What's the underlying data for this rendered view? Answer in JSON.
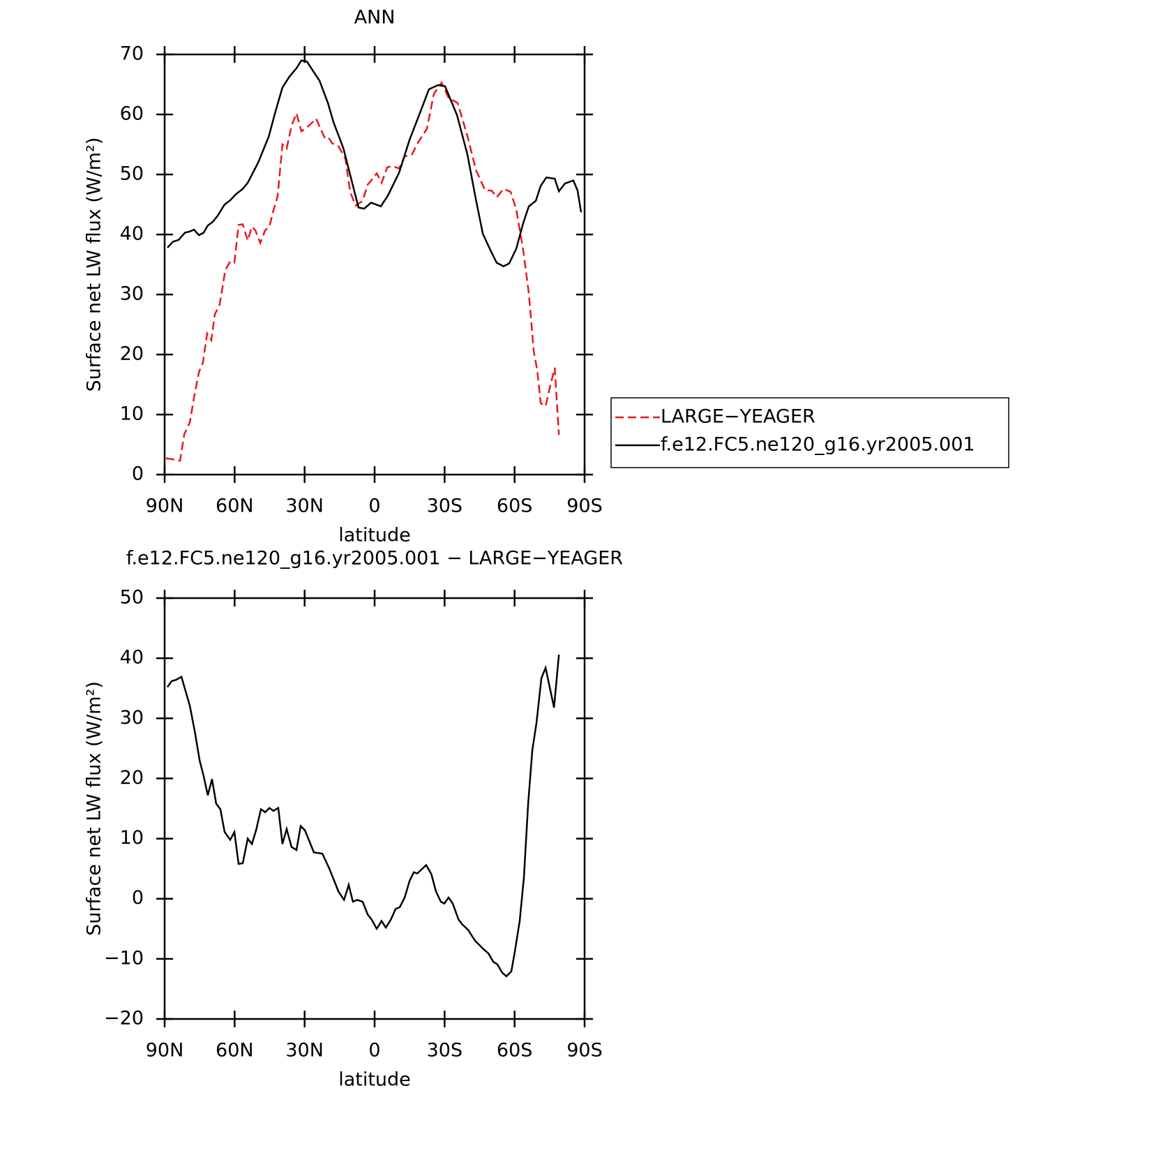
{
  "chart_data": [
    {
      "type": "line",
      "title": "ANN",
      "xlabel": "latitude",
      "ylabel": "Surface net LW flux (W/m²)",
      "xlim": [
        90,
        -90
      ],
      "xticks": [
        {
          "value": 90,
          "label": "90N"
        },
        {
          "value": 60,
          "label": "60N"
        },
        {
          "value": 30,
          "label": "30N"
        },
        0,
        {
          "value": -30,
          "label": "30S"
        },
        {
          "value": -60,
          "label": "60S"
        },
        {
          "value": -90,
          "label": "90S"
        }
      ],
      "ylim": [
        0,
        70
      ],
      "yticks": [
        0,
        10,
        20,
        30,
        40,
        50,
        60,
        70
      ],
      "legend": "right",
      "series": [
        {
          "name": "LARGE−YEAGER",
          "color": "#e8191c",
          "line_style": "dashed",
          "x": [
            89.4,
            87.3,
            83.4,
            81.6,
            79.2,
            77.4,
            75.3,
            73.6,
            71.8,
            70,
            68.5,
            66.4,
            64,
            61.9,
            60.1,
            58.3,
            56.5,
            54.4,
            52.6,
            51.1,
            49,
            46.9,
            45.1,
            43.4,
            41.6,
            39.5,
            37.7,
            35.6,
            33.5,
            31.4,
            29,
            25.1,
            21.5,
            20,
            18.2,
            15.5,
            12.5,
            10.5,
            8.1,
            5.1,
            3,
            1.2,
            -0.9,
            -3,
            -5.4,
            -7.8,
            -10.5,
            -12.9,
            -15.9,
            -18.9,
            -22.4,
            -25.4,
            -28.7,
            -31.7,
            -35.6,
            -39.8,
            -43.4,
            -47.3,
            -50.2,
            -52.3,
            -55.3,
            -58.3,
            -60.7,
            -63.7,
            -66.1,
            -68.2,
            -69.7,
            -71.2,
            -73.3,
            -75.1,
            -77.2,
            -79
          ],
          "values": [
            2.7,
            2.6,
            2.3,
            6.7,
            8.7,
            12.8,
            17.1,
            18.6,
            23.5,
            22.4,
            26.7,
            28.3,
            34.1,
            35.5,
            35.3,
            41.6,
            41.7,
            39,
            41.3,
            40.7,
            38.6,
            40.7,
            41.3,
            44,
            46.3,
            55,
            54.3,
            58.1,
            60.2,
            57.2,
            57.8,
            59.3,
            56.2,
            56.3,
            55.2,
            54.7,
            52.6,
            47.1,
            44.8,
            45.6,
            48.3,
            49.1,
            50.2,
            48.6,
            51.2,
            51.4,
            51,
            53,
            53.3,
            55.5,
            57.6,
            63.4,
            65.3,
            62.8,
            61.9,
            56.4,
            50.8,
            47.4,
            47.3,
            46.2,
            47.6,
            47.1,
            44.2,
            37.4,
            30.2,
            20.6,
            17.4,
            11.9,
            11.4,
            14.5,
            17.8,
            6.6
          ]
        },
        {
          "name": "f.e12.FC5.ne120_g16.yr2005.001",
          "color": "#000000",
          "line_style": "solid",
          "x": [
            88.8,
            86.4,
            84,
            81.3,
            79.2,
            77.4,
            75.3,
            73.3,
            71.5,
            69.4,
            67.3,
            64.3,
            61.9,
            59.5,
            56.5,
            54.4,
            49.9,
            45.4,
            42.5,
            39.5,
            36.5,
            33.5,
            31.4,
            29,
            23.6,
            20,
            17.6,
            13.4,
            9.6,
            6.9,
            4.5,
            1.5,
            -2.7,
            -5.7,
            -10.5,
            -15,
            -18.9,
            -23.3,
            -27.2,
            -30.2,
            -35.3,
            -39.8,
            -43.4,
            -46.4,
            -49.4,
            -52.3,
            -55.3,
            -57.7,
            -60.7,
            -63.7,
            -66.1,
            -69.1,
            -71.2,
            -73.6,
            -77.2,
            -79,
            -81.6,
            -85.2,
            -87,
            -88.5
          ],
          "values": [
            37.8,
            38.8,
            39.1,
            40.3,
            40.5,
            40.8,
            39.9,
            40.3,
            41.5,
            42.1,
            43.1,
            45,
            45.7,
            46.7,
            47.6,
            48.6,
            52,
            56.3,
            60.5,
            64.5,
            66.3,
            67.7,
            69,
            68.8,
            65.6,
            61.9,
            58.7,
            54.4,
            48.6,
            44.5,
            44.3,
            45.3,
            44.7,
            46.5,
            50.3,
            55.8,
            59.7,
            64.2,
            64.9,
            64.7,
            59.9,
            53.3,
            45.9,
            40.1,
            37.6,
            35.3,
            34.7,
            35.2,
            37.6,
            41.9,
            44.7,
            45.6,
            48.1,
            49.5,
            49.3,
            47.2,
            48.5,
            49,
            47.3,
            43.7
          ]
        }
      ]
    },
    {
      "type": "line",
      "title": "f.e12.FC5.ne120_g16.yr2005.001 − LARGE−YEAGER",
      "xlabel": "latitude",
      "ylabel": "Surface net LW flux (W/m²)",
      "xlim": [
        90,
        -90
      ],
      "xticks": [
        {
          "value": 90,
          "label": "90N"
        },
        {
          "value": 60,
          "label": "60N"
        },
        {
          "value": 30,
          "label": "30N"
        },
        0,
        {
          "value": -30,
          "label": "30S"
        },
        {
          "value": -60,
          "label": "60S"
        },
        {
          "value": -90,
          "label": "90S"
        }
      ],
      "ylim": [
        -20,
        50
      ],
      "yticks": [
        {
          "value": -20,
          "label": "−20"
        },
        {
          "value": -10,
          "label": "−10"
        },
        0,
        10,
        20,
        30,
        40,
        50
      ],
      "series": [
        {
          "color": "#000000",
          "line_style": "solid",
          "x": [
            88.8,
            87,
            85.2,
            82.8,
            79.2,
            77.1,
            75,
            73.3,
            71.5,
            69.7,
            67.9,
            66.1,
            64.3,
            61.9,
            60.1,
            58.3,
            56.5,
            54.4,
            52.6,
            50.8,
            48.7,
            46.9,
            45.1,
            43.4,
            41.3,
            39.5,
            37.7,
            35.6,
            33.5,
            31.7,
            29.9,
            26,
            22.4,
            19.4,
            15.5,
            13.1,
            11.1,
            9.3,
            7.5,
            5.1,
            3,
            1.2,
            -0.9,
            -3,
            -4.8,
            -6.9,
            -9,
            -10.8,
            -12.9,
            -15,
            -16.8,
            -18.3,
            -22.1,
            -24.3,
            -26.3,
            -28.4,
            -29.9,
            -31.7,
            -33.5,
            -35.9,
            -37.4,
            -40.1,
            -43.1,
            -46.7,
            -48.8,
            -50.9,
            -52.6,
            -54.7,
            -56.5,
            -58.6,
            -60.1,
            -62.2,
            -64,
            -65.8,
            -67.6,
            -69.4,
            -71.5,
            -73.3,
            -76.9,
            -79
          ],
          "values": [
            35.2,
            36.2,
            36.4,
            36.9,
            32.1,
            27.9,
            23,
            20.4,
            17.2,
            19.9,
            15.8,
            14.9,
            11.1,
            9.8,
            11.1,
            5.8,
            5.9,
            10,
            9.1,
            11.4,
            14.9,
            14.4,
            15.1,
            14.6,
            15.1,
            9.1,
            11.6,
            8.6,
            8.1,
            12.1,
            11.4,
            7.7,
            7.5,
            5,
            1.2,
            -0.2,
            2.3,
            -0.5,
            -0.2,
            -0.5,
            -2.6,
            -3.5,
            -5,
            -3.7,
            -4.8,
            -3.5,
            -1.7,
            -1.4,
            0.2,
            3,
            4.4,
            4.2,
            5.6,
            4.1,
            1.2,
            -0.5,
            -0.8,
            0.2,
            -0.8,
            -3.4,
            -4.2,
            -5.2,
            -7,
            -8.4,
            -9.1,
            -10.5,
            -10.9,
            -12.3,
            -12.9,
            -12.1,
            -8.8,
            -3.7,
            3.5,
            15.8,
            24.7,
            29.3,
            36.7,
            38.4,
            31.8,
            40.6
          ]
        }
      ]
    }
  ]
}
